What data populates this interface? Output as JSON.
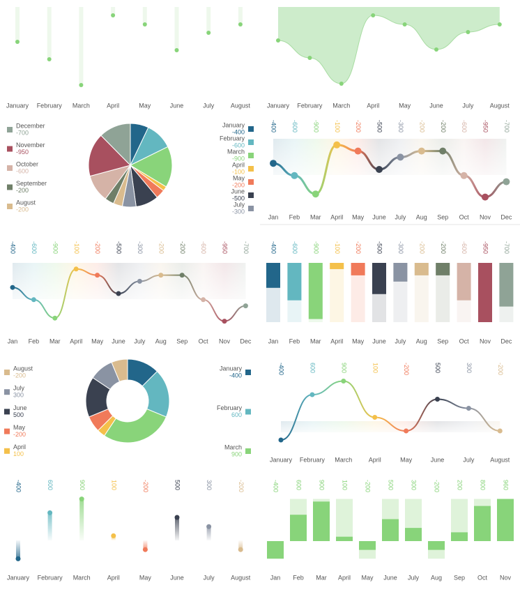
{
  "chart_data": [
    {
      "type": "lollipop-drop",
      "categories": [
        "January",
        "February",
        "March",
        "April",
        "May",
        "June",
        "July",
        "August"
      ],
      "values": [
        50,
        75,
        112,
        12,
        25,
        62,
        37,
        25
      ],
      "ylim": [
        0,
        120
      ],
      "color": "#88d47a",
      "bar_color": "#eef8ec"
    },
    {
      "type": "area-drop",
      "categories": [
        "January",
        "February",
        "March",
        "April",
        "May",
        "June",
        "July",
        "August"
      ],
      "values": [
        48,
        73,
        110,
        12,
        25,
        61,
        36,
        25
      ],
      "ylim": [
        0,
        120
      ],
      "color": "#88d47a",
      "fill": "#cdeccb"
    },
    {
      "type": "pie",
      "categories": [
        "January",
        "February",
        "March",
        "April",
        "May",
        "June",
        "July",
        "August",
        "September",
        "October",
        "November",
        "December"
      ],
      "values": [
        -400,
        -600,
        -900,
        -100,
        -200,
        -500,
        -300,
        -200,
        -200,
        -600,
        -950,
        -700
      ],
      "colors": [
        "#22668a",
        "#63b7c0",
        "#89d47a",
        "#f4c04a",
        "#f07a5a",
        "#3a4150",
        "#8a93a3",
        "#d9bb8e",
        "#6f7f68",
        "#d5b3a7",
        "#a8505f",
        "#8fa396"
      ]
    },
    {
      "type": "line",
      "categories": [
        "Jan",
        "Feb",
        "Mar",
        "April",
        "May",
        "June",
        "July",
        "Aug",
        "Sep",
        "Oct",
        "Nov",
        "Dec"
      ],
      "values": [
        -400,
        -600,
        -900,
        -100,
        -200,
        -500,
        -300,
        -200,
        -200,
        -600,
        -950,
        -700
      ],
      "ylim": [
        -1000,
        0
      ],
      "colors": [
        "#22668a",
        "#63b7c0",
        "#89d47a",
        "#f4c04a",
        "#f07a5a",
        "#3a4150",
        "#8a93a3",
        "#d9bb8e",
        "#6f7f68",
        "#d5b3a7",
        "#a8505f",
        "#8fa396"
      ]
    },
    {
      "type": "line",
      "categories": [
        "Jan",
        "Feb",
        "Mar",
        "April",
        "May",
        "June",
        "July",
        "Aug",
        "Sep",
        "Oct",
        "Nov",
        "Dec"
      ],
      "values": [
        -400,
        -600,
        -900,
        -100,
        -200,
        -500,
        -300,
        -200,
        -200,
        -600,
        -950,
        -700
      ],
      "ylim": [
        -1000,
        0
      ],
      "colors": [
        "#22668a",
        "#63b7c0",
        "#89d47a",
        "#f4c04a",
        "#f07a5a",
        "#3a4150",
        "#8a93a3",
        "#d9bb8e",
        "#6f7f68",
        "#d5b3a7",
        "#a8505f",
        "#8fa396"
      ]
    },
    {
      "type": "column-drop",
      "categories": [
        "Jan",
        "Feb",
        "Mar",
        "April",
        "May",
        "June",
        "July",
        "Aug",
        "Sep",
        "Oct",
        "Nov",
        "Dec"
      ],
      "values": [
        -400,
        -600,
        -900,
        -100,
        -200,
        -500,
        -300,
        -200,
        -200,
        -600,
        -950,
        -700
      ],
      "ylim": [
        -950,
        0
      ],
      "colors": [
        "#22668a",
        "#63b7c0",
        "#89d47a",
        "#f4c04a",
        "#f07a5a",
        "#3a4150",
        "#8a93a3",
        "#d9bb8e",
        "#6f7f68",
        "#d5b3a7",
        "#a8505f",
        "#8fa396"
      ]
    },
    {
      "type": "donut",
      "categories": [
        "January",
        "February",
        "March",
        "April",
        "May",
        "June",
        "July",
        "August"
      ],
      "values": [
        -400,
        600,
        900,
        100,
        -200,
        500,
        300,
        -200
      ],
      "colors": [
        "#22668a",
        "#63b7c0",
        "#89d47a",
        "#f4c04a",
        "#f07a5a",
        "#3a4150",
        "#8a93a3",
        "#d9bb8e"
      ]
    },
    {
      "type": "line",
      "categories": [
        "January",
        "February",
        "March",
        "April",
        "May",
        "June",
        "July",
        "August"
      ],
      "values": [
        -400,
        600,
        900,
        100,
        -200,
        500,
        300,
        -200
      ],
      "ylim": [
        -1000,
        1000
      ],
      "colors": [
        "#22668a",
        "#63b7c0",
        "#89d47a",
        "#f4c04a",
        "#f07a5a",
        "#3a4150",
        "#8a93a3",
        "#d9bb8e"
      ]
    },
    {
      "type": "lollipop",
      "categories": [
        "January",
        "February",
        "March",
        "April",
        "May",
        "June",
        "July",
        "August"
      ],
      "values": [
        -400,
        600,
        900,
        100,
        -200,
        500,
        300,
        -200
      ],
      "ylim": [
        -1000,
        1000
      ],
      "colors": [
        "#22668a",
        "#63b7c0",
        "#89d47a",
        "#f4c04a",
        "#f07a5a",
        "#3a4150",
        "#8a93a3",
        "#d9bb8e"
      ]
    },
    {
      "type": "bar",
      "categories": [
        "Jan",
        "Feb",
        "Mar",
        "April",
        "May",
        "June",
        "July",
        "Aug",
        "Sep",
        "Oct",
        "Nov"
      ],
      "values": [
        -400,
        600,
        900,
        100,
        -200,
        500,
        300,
        -200,
        200,
        800,
        960
      ],
      "ylim": [
        -1000,
        1000
      ],
      "color": "#88d47a",
      "bg_color": "#dff3da"
    }
  ]
}
